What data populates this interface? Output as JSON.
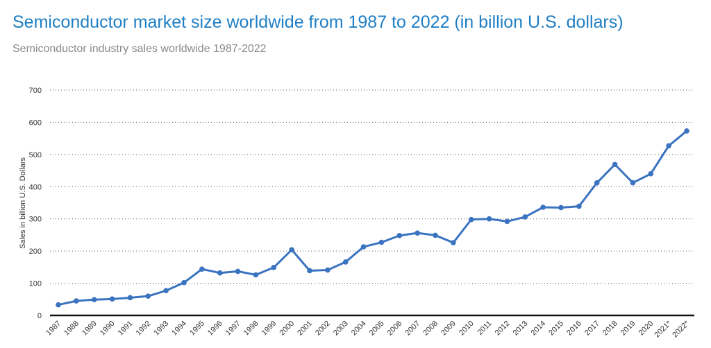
{
  "header": {
    "title": "Semiconductor market size worldwide from 1987 to 2022 (in billion U.S. dollars)",
    "subtitle": "Semiconductor industry sales worldwide 1987-2022"
  },
  "colors": {
    "title": "#1f7fc4",
    "line": "#3a73c0",
    "subtitle": "#8a8a8a"
  },
  "chart_data": {
    "type": "line",
    "title": "Semiconductor market size worldwide from 1987 to 2022 (in billion U.S. dollars)",
    "subtitle": "Semiconductor industry sales worldwide 1987-2022",
    "xlabel": "",
    "ylabel": "Sales in billion U.S. Dollars",
    "ylim": [
      0,
      700
    ],
    "yticks": [
      0,
      100,
      200,
      300,
      400,
      500,
      600,
      700
    ],
    "grid": true,
    "legend": "none",
    "categories": [
      "1987",
      "1988",
      "1989",
      "1990",
      "1991",
      "1992",
      "1993",
      "1994",
      "1995",
      "1996",
      "1997",
      "1998",
      "1999",
      "2000",
      "2001",
      "2002",
      "2003",
      "2004",
      "2005",
      "2006",
      "2007",
      "2008",
      "2009",
      "2010",
      "2011",
      "2012",
      "2013",
      "2014",
      "2015",
      "2016",
      "2017",
      "2018",
      "2019",
      "2020",
      "2021*",
      "2022*"
    ],
    "series": [
      {
        "name": "Sales",
        "values": [
          33,
          45,
          49,
          51,
          55,
          60,
          77,
          102,
          144,
          132,
          137,
          126,
          149,
          204,
          139,
          141,
          166,
          213,
          227,
          248,
          256,
          249,
          226,
          298,
          300,
          292,
          306,
          336,
          335,
          339,
          412,
          469,
          412,
          440,
          527,
          573
        ]
      }
    ]
  }
}
